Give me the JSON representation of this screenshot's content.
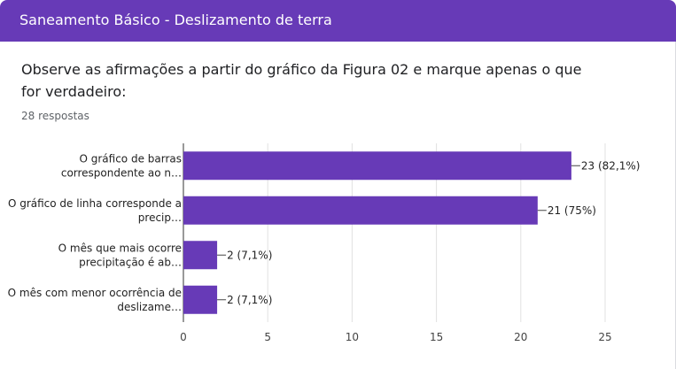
{
  "header": {
    "title": "Saneamento Básico - Deslizamento de terra"
  },
  "question": {
    "text": "Observe as afirmações a partir do gráfico da Figura 02 e marque apenas o que for verdadeiro:",
    "responses": "28 respostas"
  },
  "colors": {
    "accent": "#673ab7",
    "bar": "#673ab7"
  },
  "chart_data": {
    "type": "bar",
    "orientation": "horizontal",
    "categories": [
      [
        "O gráfico de barras",
        "correspondente ao n…"
      ],
      [
        "O gráfico de linha corresponde a",
        "precip…"
      ],
      [
        "O mês que mais ocorre",
        "precipitação é ab…"
      ],
      [
        "O mês com menor ocorrência de",
        "deslizame…"
      ]
    ],
    "values": [
      23,
      21,
      2,
      2
    ],
    "data_labels": [
      "23 (82,1%)",
      "21 (75%)",
      "2 (7,1%)",
      "2 (7,1%)"
    ],
    "xlim": [
      0,
      25
    ],
    "xticks": [
      "0",
      "5",
      "10",
      "15",
      "20",
      "25"
    ],
    "grid": true
  }
}
